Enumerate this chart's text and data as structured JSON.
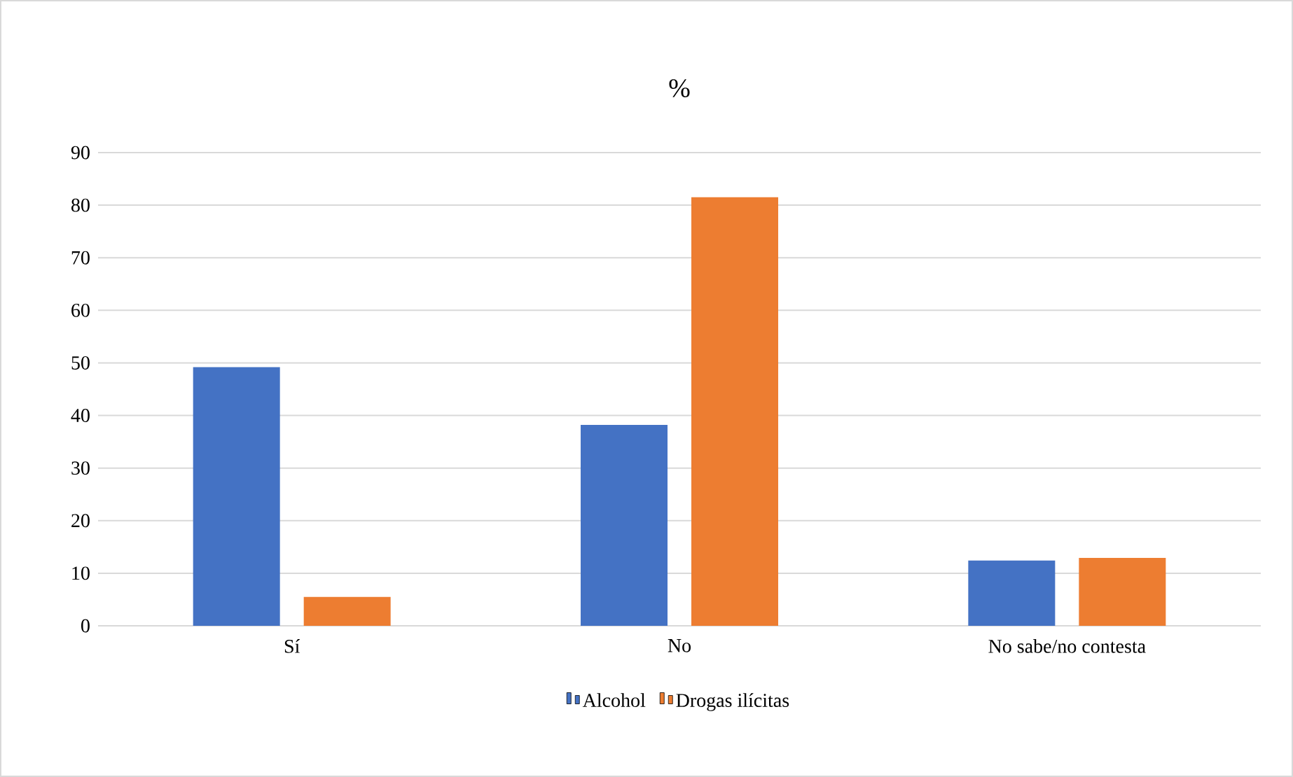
{
  "chart_data": {
    "type": "bar",
    "title": "%",
    "categories": [
      "Sí",
      "No",
      "No sabe/no contesta"
    ],
    "series": [
      {
        "name": "Alcohol",
        "color": "#4472c4",
        "values": [
          49.2,
          38.2,
          12.4
        ]
      },
      {
        "name": "Drogas ilícitas",
        "color": "#ed7d31",
        "values": [
          5.5,
          81.5,
          12.9
        ]
      }
    ],
    "ylim": [
      0,
      90
    ],
    "yticks": [
      0,
      10,
      20,
      30,
      40,
      50,
      60,
      70,
      80,
      90
    ],
    "grid": "y",
    "legend": "bottom"
  }
}
